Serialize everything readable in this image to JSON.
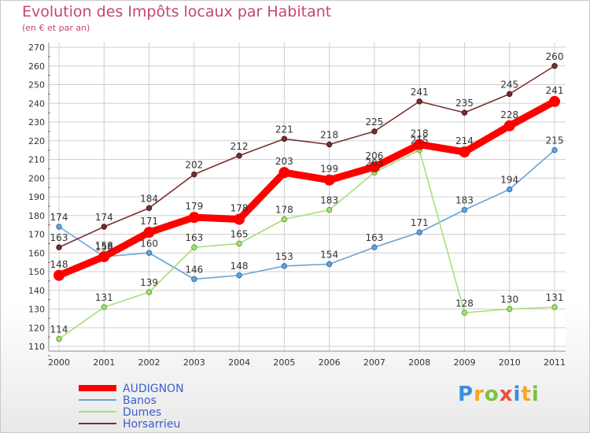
{
  "header": {
    "title": "Evolution des Impôts locaux par Habitant",
    "subtitle": "(en € et par an)"
  },
  "logo": {
    "text": "Proxiti",
    "colors": [
      "#3a8ede",
      "#f5a623",
      "#7bc043",
      "#e94e3c",
      "#3a8ede",
      "#f5a623",
      "#7bc043"
    ]
  },
  "chart_data": {
    "type": "line",
    "title": "Evolution des Impôts locaux par Habitant",
    "subtitle": "(en € et par an)",
    "xlabel": "",
    "ylabel": "",
    "categories": [
      "2000",
      "2001",
      "2002",
      "2003",
      "2004",
      "2005",
      "2006",
      "2007",
      "2008",
      "2009",
      "2010",
      "2011"
    ],
    "ylim": [
      110,
      270
    ],
    "ytick_step": 10,
    "grid": true,
    "legend_position": "bottom-left",
    "series": [
      {
        "name": "AUDIGNON",
        "color": "#ff0000",
        "values": [
          148,
          158,
          171,
          179,
          178,
          203,
          199,
          206,
          218,
          214,
          228,
          241
        ]
      },
      {
        "name": "Banos",
        "color": "#6ba3d6",
        "values": [
          174,
          158,
          160,
          146,
          148,
          153,
          154,
          163,
          171,
          183,
          194,
          215
        ]
      },
      {
        "name": "Dumes",
        "color": "#a6e07a",
        "values": [
          114,
          131,
          139,
          163,
          165,
          178,
          183,
          203,
          215,
          128,
          130,
          131
        ]
      },
      {
        "name": "Horsarrieu",
        "color": "#7a2e2e",
        "values": [
          163,
          174,
          184,
          202,
          212,
          221,
          218,
          225,
          241,
          235,
          245,
          260
        ]
      }
    ]
  }
}
